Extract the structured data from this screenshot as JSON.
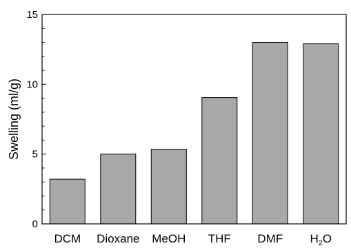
{
  "chart_data": {
    "type": "bar",
    "categories": [
      "DCM",
      "Dioxane",
      "MeOH",
      "THF",
      "DMF",
      "H2O"
    ],
    "values": [
      3.2,
      5.0,
      5.35,
      9.05,
      13.0,
      12.9
    ],
    "title": "",
    "xlabel": "",
    "ylabel": "Swelling (ml/g)",
    "ylim": [
      0,
      15
    ],
    "yticks": [
      0,
      5,
      10,
      15
    ],
    "grid": false,
    "bar_color": "#a8a8a8",
    "edge_color": "#000000"
  }
}
